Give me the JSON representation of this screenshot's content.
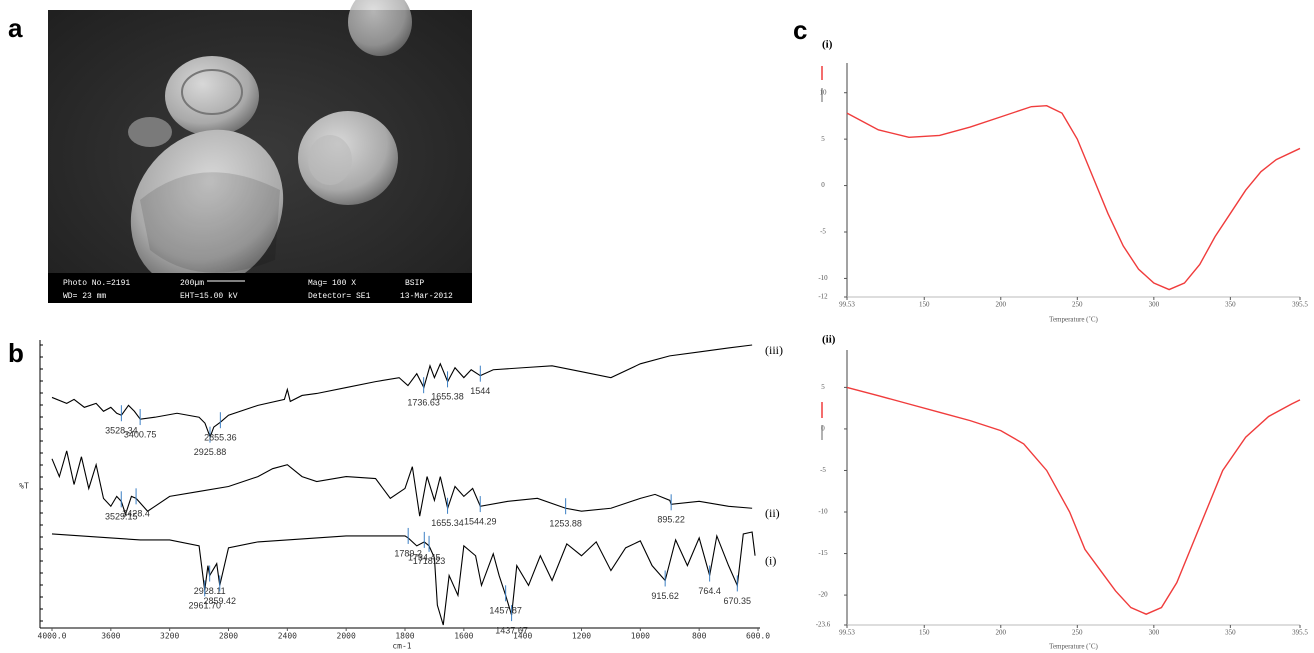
{
  "panel_labels": [
    "a",
    "b",
    "c"
  ],
  "sem_image": {
    "info": [
      "Photo No.=2191",
      "200µm",
      "Mag= 100 X",
      "BSIP",
      "WD= 23 mm",
      "EHT=15.00 kV",
      "Detector= SE1",
      "13-Mar-2012"
    ]
  },
  "chart_data": [
    {
      "type": "line",
      "xlabel": "cm-1",
      "ylabel": "%T",
      "xlim": [
        4000,
        600
      ],
      "xticks": [
        {
          "value": 4000,
          "label": "4000.0"
        },
        3600,
        3200,
        2800,
        2400,
        2000,
        1800,
        1600,
        1400,
        1200,
        1000,
        800,
        {
          "value": 600,
          "label": "600.0"
        }
      ],
      "peak_color": "#3b7fc4",
      "series": [
        {
          "name": "(iii)",
          "color": "#000000",
          "x": [
            4000,
            3900,
            3850,
            3780,
            3700,
            3650,
            3600,
            3560,
            3528,
            3480,
            3440,
            3400,
            3300,
            3150,
            3000,
            2960,
            2925,
            2900,
            2855,
            2800,
            2600,
            2420,
            2400,
            2380,
            2300,
            2200,
            2000,
            1900,
            1820,
            1790,
            1760,
            1736,
            1715,
            1700,
            1680,
            1655,
            1630,
            1600,
            1575,
            1544,
            1500,
            1400,
            1300,
            1200,
            1100,
            1000,
            900,
            800,
            700,
            620
          ],
          "values": [
            230,
            224,
            228,
            220,
            224,
            216,
            220,
            214,
            212,
            222,
            216,
            208,
            210,
            214,
            210,
            204,
            190,
            200,
            205,
            212,
            222,
            228,
            238,
            226,
            232,
            234,
            240,
            246,
            250,
            242,
            254,
            240,
            262,
            250,
            264,
            246,
            260,
            250,
            258,
            252,
            258,
            260,
            262,
            256,
            250,
            264,
            272,
            276,
            280,
            283
          ],
          "peaks": [
            3528.34,
            3400.75,
            2925.88,
            2855.36,
            1736.63,
            1655.38,
            1544
          ]
        },
        {
          "name": "(ii)",
          "color": "#000000",
          "x": [
            4000,
            3950,
            3900,
            3850,
            3800,
            3750,
            3700,
            3650,
            3600,
            3560,
            3529,
            3500,
            3460,
            3428,
            3350,
            3300,
            3200,
            3000,
            2800,
            2600,
            2500,
            2400,
            2300,
            2200,
            2000,
            1900,
            1850,
            1800,
            1775,
            1750,
            1725,
            1700,
            1680,
            1655,
            1630,
            1600,
            1570,
            1544,
            1450,
            1350,
            1253.88,
            1200,
            1100,
            1000,
            950,
            900,
            895.22,
            800,
            700,
            620
          ],
          "values": [
            168,
            150,
            176,
            142,
            170,
            138,
            162,
            128,
            120,
            130,
            125,
            112,
            130,
            128,
            115,
            120,
            130,
            135,
            140,
            150,
            158,
            162,
            150,
            145,
            150,
            148,
            128,
            138,
            160,
            110,
            150,
            126,
            150,
            118,
            140,
            130,
            138,
            120,
            125,
            128,
            118,
            115,
            118,
            128,
            132,
            126,
            122,
            125,
            120,
            118
          ],
          "peaks": [
            3529.15,
            3428.4,
            1544.29,
            1655.34,
            1253.88,
            895.22
          ]
        },
        {
          "name": "(i)",
          "color": "#000000",
          "x": [
            4000,
            3800,
            3600,
            3400,
            3200,
            3000,
            2961.7,
            2940,
            2928.11,
            2880,
            2859.42,
            2800,
            2600,
            2400,
            2200,
            2000,
            1900,
            1800,
            1789.2,
            1760,
            1734.45,
            1718.23,
            1700,
            1690,
            1670,
            1650,
            1620,
            1600,
            1560,
            1540,
            1500,
            1480,
            1457.87,
            1437.67,
            1420,
            1380,
            1340,
            1300,
            1250,
            1200,
            1150,
            1100,
            1050,
            1000,
            960,
            915.62,
            880,
            840,
            800,
            764.4,
            740,
            700,
            670.35,
            650,
            620,
            610
          ],
          "values": [
            92,
            90,
            88,
            86,
            86,
            80,
            35,
            60,
            50,
            62,
            40,
            78,
            84,
            86,
            88,
            90,
            90,
            90,
            88,
            80,
            84,
            80,
            68,
            20,
            0,
            50,
            30,
            80,
            70,
            40,
            72,
            50,
            30,
            10,
            60,
            40,
            70,
            45,
            82,
            70,
            84,
            55,
            78,
            85,
            60,
            45,
            86,
            60,
            88,
            50,
            90,
            60,
            40,
            92,
            94,
            70
          ],
          "peaks": [
            2928.11,
            {
              "value": 2961.7,
              "label": "2961.70"
            },
            2859.42,
            1789.2,
            1734.45,
            1718.23,
            1457.87,
            1437.67,
            915.62,
            764.4,
            670.35
          ]
        }
      ]
    },
    {
      "type": "line",
      "title": "(i)",
      "xlabel": "Temperature (˚C)",
      "xlim": [
        99.53,
        395.5
      ],
      "xticks": [
        99.53,
        150,
        200,
        250,
        300,
        350,
        395.5
      ],
      "ylim": [
        -12,
        13.2
      ],
      "yticks": [
        -12,
        -10,
        -5,
        0,
        5,
        10
      ],
      "series": [
        {
          "color": "#f03c3c",
          "x": [
            99.53,
            120,
            140,
            160,
            180,
            200,
            220,
            230,
            240,
            250,
            260,
            270,
            280,
            290,
            300,
            310,
            320,
            330,
            340,
            350,
            360,
            370,
            380,
            395.5
          ],
          "values": [
            7.8,
            6,
            5.2,
            5.4,
            6.3,
            7.4,
            8.5,
            8.6,
            7.8,
            5,
            1,
            -3,
            -6.5,
            -9,
            -10.5,
            -11.2,
            -10.5,
            -8.5,
            -5.5,
            -3,
            -0.5,
            1.5,
            2.8,
            4
          ]
        }
      ]
    },
    {
      "type": "line",
      "title": "(ii)",
      "xlabel": "Temperature (˚C)",
      "xlim": [
        99.53,
        395.5
      ],
      "xticks": [
        99.53,
        150,
        200,
        250,
        300,
        350,
        395.5
      ],
      "ylim": [
        -23.6,
        9.5
      ],
      "yticks": [
        -23.6,
        -20,
        -15,
        -10,
        -5,
        0,
        5
      ],
      "series": [
        {
          "color": "#f03c3c",
          "x": [
            99.53,
            120,
            140,
            160,
            180,
            200,
            215,
            230,
            245,
            255,
            265,
            275,
            285,
            295,
            305,
            315,
            325,
            335,
            345,
            360,
            375,
            390,
            395.5
          ],
          "values": [
            5,
            4,
            3,
            2,
            1,
            -0.2,
            -1.8,
            -5,
            -10,
            -14.5,
            -17,
            -19.5,
            -21.5,
            -22.3,
            -21.5,
            -18.5,
            -14,
            -9.5,
            -5,
            -1,
            1.5,
            3,
            3.5
          ]
        }
      ]
    }
  ]
}
